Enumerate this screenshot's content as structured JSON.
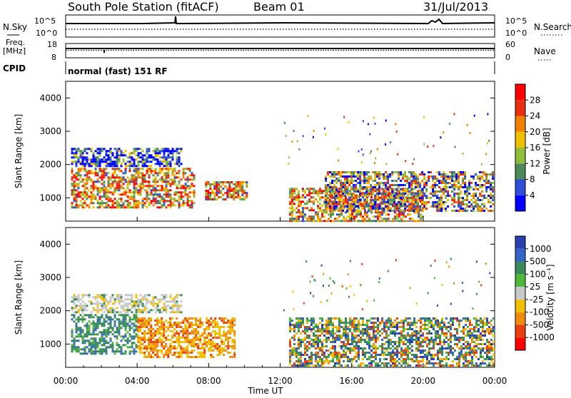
{
  "header": {
    "station": "South Pole Station (fitACF)",
    "beam": "Beam 01",
    "date": "31/Jul/2013"
  },
  "strips": {
    "nsky_label": "N.Sky",
    "nsearch_label": "N.Search",
    "noise_ticks": [
      "10^5",
      "10^0"
    ],
    "freq_label_line1": "Freq.",
    "freq_label_line2": "[MHz]",
    "freq_ticks": [
      "18",
      "8"
    ],
    "nave_label": "Nave",
    "nave_ticks": [
      "60",
      "0"
    ],
    "cpid_label": "CPID",
    "cpid_text": "normal (fast) 151 RF"
  },
  "x_axis": {
    "label": "Time UT",
    "ticks": [
      "00:00",
      "04:00",
      "08:00",
      "12:00",
      "16:00",
      "20:00",
      "00:00"
    ]
  },
  "chart_data": [
    {
      "type": "heatmap",
      "ylabel": "Slant Range [km]",
      "yticks": [
        "1000",
        "2000",
        "3000",
        "4000"
      ],
      "ylim": [
        300,
        4500
      ],
      "x": [
        "00:00",
        "24:00"
      ],
      "colorbar": {
        "label": "Power [dB]",
        "ticks": [
          "4",
          "8",
          "12",
          "16",
          "20",
          "24",
          "28"
        ],
        "colors": [
          "#0000ff",
          "#2f4ed8",
          "#4d8a5a",
          "#8fbf3a",
          "#f0c000",
          "#f08000",
          "#e83010",
          "#ff0000"
        ]
      },
      "regions": [
        {
          "time": [
            0.3,
            7.3
          ],
          "range": [
            700,
            1900
          ],
          "level": "high"
        },
        {
          "time": [
            0.3,
            6.5
          ],
          "range": [
            1900,
            2500
          ],
          "level": "low"
        },
        {
          "time": [
            7.8,
            10.2
          ],
          "range": [
            900,
            1500
          ],
          "level": "high"
        },
        {
          "time": [
            12.5,
            20.0
          ],
          "range": [
            300,
            1300
          ],
          "level": "high"
        },
        {
          "time": [
            14.5,
            24.0
          ],
          "range": [
            600,
            1800
          ],
          "level": "medium"
        }
      ]
    },
    {
      "type": "heatmap",
      "ylabel": "Slant Range [km]",
      "yticks": [
        "1000",
        "2000",
        "3000",
        "4000"
      ],
      "ylim": [
        300,
        4500
      ],
      "x": [
        "00:00",
        "24:00"
      ],
      "colorbar": {
        "label": "Velocity [m s⁻¹]",
        "ticks": [
          "1000",
          "500",
          "100",
          "25",
          "-25",
          "-100",
          "-500",
          "-1000"
        ],
        "colors": [
          "#2a3fb0",
          "#3565c8",
          "#3a8a5c",
          "#4fb83a",
          "#c8c8c8",
          "#f0c000",
          "#f08a10",
          "#e84010",
          "#ff0000"
        ]
      },
      "regions": [
        {
          "time": [
            0.3,
            4.0
          ],
          "range": [
            700,
            1900
          ],
          "level": "positive"
        },
        {
          "time": [
            0.3,
            6.5
          ],
          "range": [
            1900,
            2500
          ],
          "level": "neutral"
        },
        {
          "time": [
            4.0,
            9.5
          ],
          "range": [
            600,
            1800
          ],
          "level": "negative"
        },
        {
          "time": [
            12.5,
            24.0
          ],
          "range": [
            300,
            1800
          ],
          "level": "mixed"
        }
      ]
    }
  ]
}
